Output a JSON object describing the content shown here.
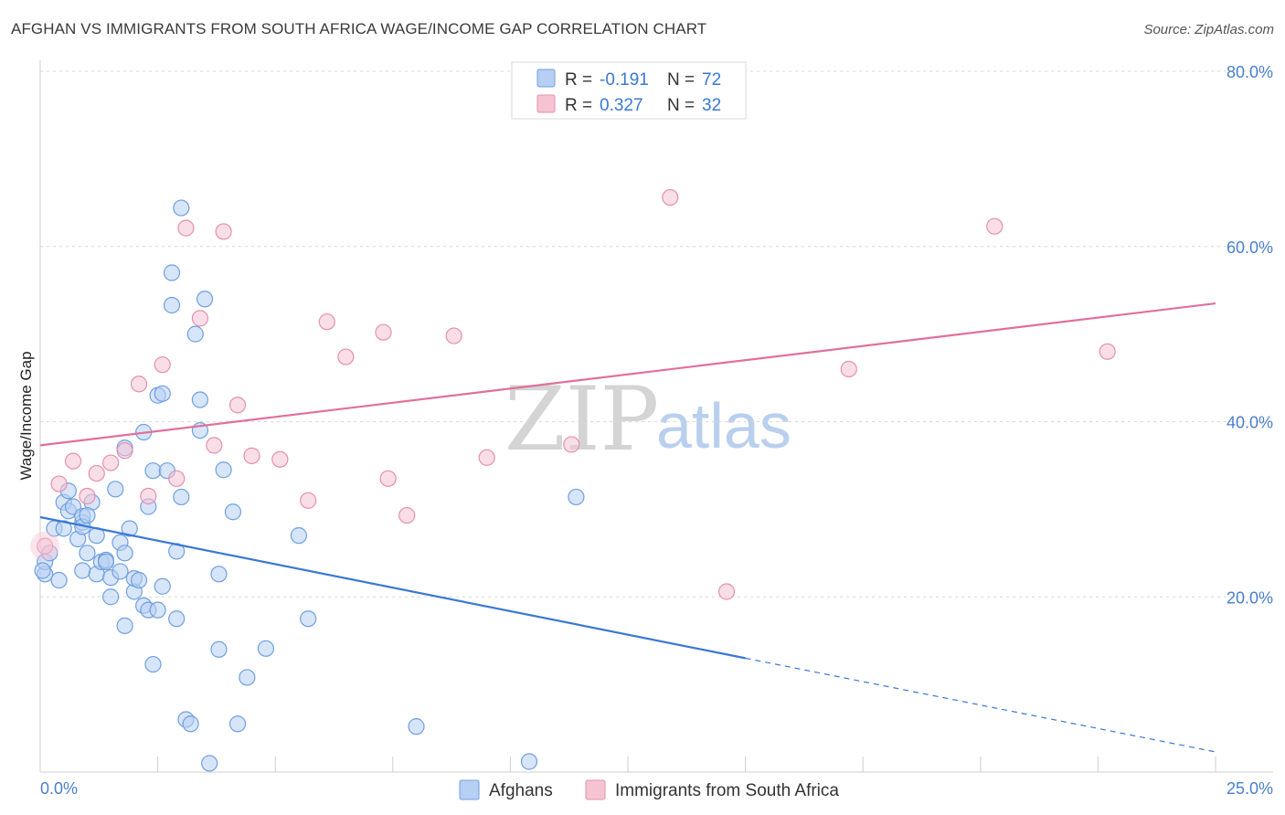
{
  "header": {
    "title": "AFGHAN VS IMMIGRANTS FROM SOUTH AFRICA WAGE/INCOME GAP CORRELATION CHART",
    "source": "Source: ZipAtlas.com"
  },
  "watermark": {
    "zip": "ZIP",
    "atlas": "atlas"
  },
  "colors": {
    "blue": "#3a78d4",
    "blue_fill": "#b7cff3",
    "pink": "#e0709a",
    "pink_fill": "#f6c3d3",
    "grid": "#d8d8d8",
    "axis_label": "#4a7fd0"
  },
  "legend": {
    "items": [
      {
        "r_label": "R =",
        "r_value": "-0.191",
        "n_label": "N =",
        "n_value": "72"
      },
      {
        "r_label": "R =",
        "r_value": "0.327",
        "n_label": "N =",
        "n_value": "32"
      }
    ]
  },
  "bottom_legend": {
    "afghans": "Afghans",
    "south_africa": "Immigrants from South Africa"
  },
  "chart_data": {
    "type": "scatter",
    "title": "AFGHAN VS IMMIGRANTS FROM SOUTH AFRICA WAGE/INCOME GAP CORRELATION CHART",
    "xlabel": "",
    "ylabel": "Wage/Income Gap",
    "xlim": [
      0,
      25
    ],
    "ylim": [
      0,
      80
    ],
    "x_tick_labels": {
      "min": "0.0%",
      "max": "25.0%"
    },
    "y_ticks": [
      {
        "value": 20,
        "label": "20.0%"
      },
      {
        "value": 40,
        "label": "40.0%"
      },
      {
        "value": 60,
        "label": "60.0%"
      },
      {
        "value": 80,
        "label": "80.0%"
      }
    ],
    "series": [
      {
        "name": "Afghans",
        "color": "blue",
        "trend": {
          "x0": 0,
          "y0": 29.1,
          "x1": 15,
          "y1": 13.0,
          "dash_to_x": 25,
          "dash_to_y": 2.3
        },
        "points": [
          [
            0.1,
            22.6
          ],
          [
            0.1,
            24.0
          ],
          [
            0.2,
            25.0
          ],
          [
            0.3,
            27.8
          ],
          [
            0.4,
            21.9
          ],
          [
            0.5,
            27.8
          ],
          [
            0.5,
            30.8
          ],
          [
            0.6,
            29.8
          ],
          [
            0.6,
            32.1
          ],
          [
            0.7,
            30.3
          ],
          [
            0.8,
            26.6
          ],
          [
            0.9,
            28.5
          ],
          [
            0.9,
            29.2
          ],
          [
            0.9,
            28.0
          ],
          [
            0.9,
            23.0
          ],
          [
            1.0,
            25.0
          ],
          [
            1.1,
            30.8
          ],
          [
            1.0,
            29.3
          ],
          [
            1.2,
            22.6
          ],
          [
            1.2,
            27.0
          ],
          [
            1.3,
            24.0
          ],
          [
            1.4,
            24.2
          ],
          [
            1.4,
            24.0
          ],
          [
            1.5,
            20.0
          ],
          [
            1.5,
            22.2
          ],
          [
            1.6,
            32.3
          ],
          [
            1.7,
            26.2
          ],
          [
            1.7,
            22.9
          ],
          [
            1.8,
            25.0
          ],
          [
            1.8,
            37.0
          ],
          [
            1.8,
            16.7
          ],
          [
            1.9,
            27.8
          ],
          [
            2.0,
            20.6
          ],
          [
            2.0,
            22.1
          ],
          [
            2.1,
            21.9
          ],
          [
            2.2,
            19.0
          ],
          [
            2.2,
            38.8
          ],
          [
            2.3,
            18.5
          ],
          [
            2.3,
            30.3
          ],
          [
            2.4,
            12.3
          ],
          [
            2.4,
            34.4
          ],
          [
            2.5,
            18.5
          ],
          [
            2.5,
            43.0
          ],
          [
            2.6,
            43.2
          ],
          [
            2.6,
            21.2
          ],
          [
            2.7,
            34.4
          ],
          [
            2.8,
            57.0
          ],
          [
            2.8,
            53.3
          ],
          [
            2.9,
            17.5
          ],
          [
            2.9,
            25.2
          ],
          [
            3.0,
            31.4
          ],
          [
            3.0,
            64.4
          ],
          [
            3.1,
            6.0
          ],
          [
            3.2,
            5.5
          ],
          [
            3.3,
            50.0
          ],
          [
            3.4,
            39.0
          ],
          [
            3.4,
            42.5
          ],
          [
            3.5,
            54.0
          ],
          [
            3.6,
            1.0
          ],
          [
            3.8,
            22.6
          ],
          [
            3.8,
            14.0
          ],
          [
            3.9,
            34.5
          ],
          [
            4.1,
            29.7
          ],
          [
            4.2,
            5.5
          ],
          [
            4.4,
            10.8
          ],
          [
            4.8,
            14.1
          ],
          [
            5.5,
            27.0
          ],
          [
            5.7,
            17.5
          ],
          [
            8.0,
            5.2
          ],
          [
            10.4,
            1.2
          ],
          [
            11.4,
            31.4
          ],
          [
            0.05,
            23.0
          ]
        ]
      },
      {
        "name": "Immigrants from South Africa",
        "color": "pink",
        "trend": {
          "x0": 0,
          "y0": 37.3,
          "x1": 25,
          "y1": 53.5
        },
        "points": [
          [
            0.1,
            25.8
          ],
          [
            0.4,
            32.9
          ],
          [
            0.7,
            35.5
          ],
          [
            1.0,
            31.5
          ],
          [
            1.2,
            34.1
          ],
          [
            1.5,
            35.3
          ],
          [
            1.8,
            36.7
          ],
          [
            2.1,
            44.3
          ],
          [
            2.3,
            31.5
          ],
          [
            2.6,
            46.5
          ],
          [
            2.9,
            33.5
          ],
          [
            3.1,
            62.1
          ],
          [
            3.4,
            51.8
          ],
          [
            3.7,
            37.3
          ],
          [
            3.9,
            61.7
          ],
          [
            4.2,
            41.9
          ],
          [
            4.5,
            36.1
          ],
          [
            5.1,
            35.7
          ],
          [
            5.7,
            31.0
          ],
          [
            6.1,
            51.4
          ],
          [
            6.5,
            47.4
          ],
          [
            7.3,
            50.2
          ],
          [
            7.4,
            33.5
          ],
          [
            7.8,
            29.3
          ],
          [
            8.8,
            49.8
          ],
          [
            9.5,
            35.9
          ],
          [
            11.3,
            37.4
          ],
          [
            13.4,
            65.6
          ],
          [
            14.6,
            20.6
          ],
          [
            17.2,
            46.0
          ],
          [
            20.3,
            62.3
          ],
          [
            22.7,
            48.0
          ]
        ]
      }
    ]
  }
}
